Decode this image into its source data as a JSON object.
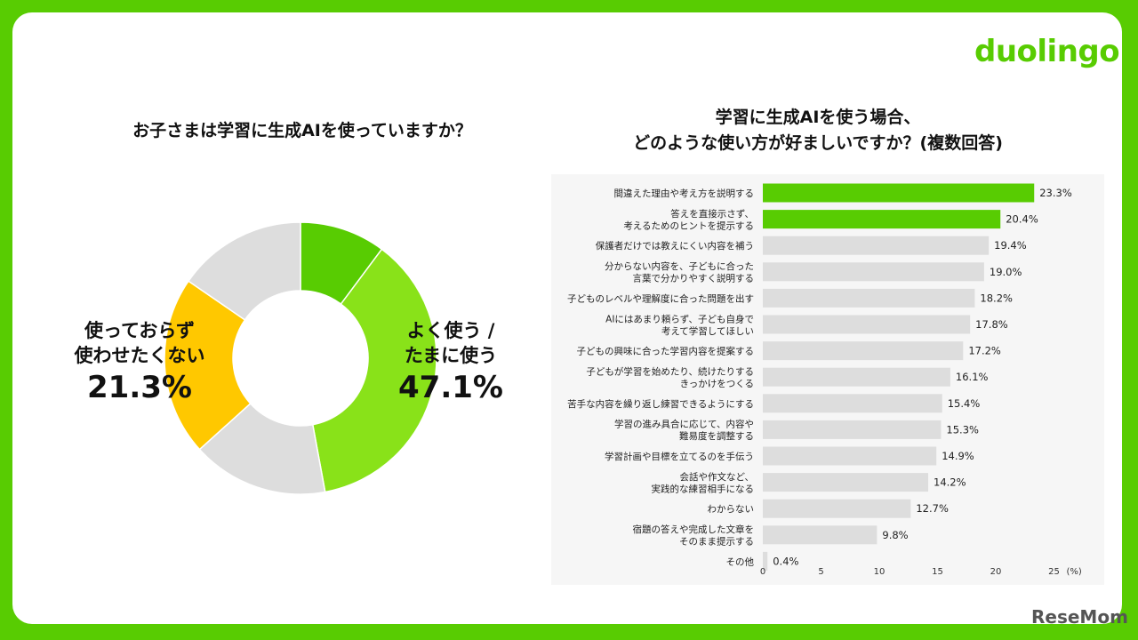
{
  "brand": {
    "logo": "duolingo",
    "watermark": "ReseMom"
  },
  "colors": {
    "background": "#58cc02",
    "green_dark": "#58cc02",
    "green_light": "#89e219",
    "yellow": "#ffc800",
    "gray": "#dddddd"
  },
  "left_chart": {
    "title": "お子さまは学習に生成AIを使っていますか？",
    "label_use_line1": "よく使う /",
    "label_use_line2": "たまに使う",
    "label_use_value": "47.1%",
    "label_other_line1": "使っておらず",
    "label_other_line2": "使わせたくない",
    "label_other_value": "21.3%"
  },
  "right_chart": {
    "title_line1": "学習に生成AIを使う場合、",
    "title_line2": "どのような使い方が好ましいですか？(複数回答)",
    "unit": "(%)"
  },
  "chart_data": [
    {
      "type": "pie",
      "title": "お子さまは学習に生成AIを使っていますか？",
      "slices": [
        {
          "color": "#58cc02",
          "value": 10.2
        },
        {
          "color": "#89e219",
          "value": 36.9
        },
        {
          "color": "#dddddd",
          "value": 16.2
        },
        {
          "color": "#ffc800",
          "value": 21.3
        },
        {
          "color": "#dddddd",
          "value": 15.4
        }
      ],
      "labeled_groups": [
        {
          "label": "よく使う / たまに使う",
          "value": 47.1
        },
        {
          "label": "使っておらず 使わせたくない",
          "value": 21.3
        }
      ]
    },
    {
      "type": "bar",
      "orientation": "horizontal",
      "title": "学習に生成AIを使う場合、どのような使い方が好ましいですか？(複数回答)",
      "xlim": [
        0,
        25
      ],
      "xticks": [
        0,
        5,
        10,
        15,
        20,
        25
      ],
      "unit": "(%)",
      "categories": [
        [
          "間違えた理由や考え方を説明する"
        ],
        [
          "答えを直接示さず、",
          "考えるためのヒントを提示する"
        ],
        [
          "保護者だけでは教えにくい内容を補う"
        ],
        [
          "分からない内容を、子どもに合った",
          "言葉で分かりやすく説明する"
        ],
        [
          "子どものレベルや理解度に合った問題を出す"
        ],
        [
          "AIにはあまり頼らず、子ども自身で",
          "考えて学習してほしい"
        ],
        [
          "子どもの興味に合った学習内容を提案する"
        ],
        [
          "子どもが学習を始めたり、続けたりする",
          "きっかけをつくる"
        ],
        [
          "苦手な内容を繰り返し練習できるようにする"
        ],
        [
          "学習の進み具合に応じて、内容や",
          "難易度を調整する"
        ],
        [
          "学習計画や目標を立てるのを手伝う"
        ],
        [
          "会話や作文など、",
          "実践的な練習相手になる"
        ],
        [
          "わからない"
        ],
        [
          "宿題の答えや完成した文章を",
          "そのまま提示する"
        ],
        [
          "その他"
        ]
      ],
      "values": [
        23.3,
        20.4,
        19.4,
        19.0,
        18.2,
        17.8,
        17.2,
        16.1,
        15.4,
        15.3,
        14.9,
        14.2,
        12.7,
        9.8,
        0.4
      ],
      "value_labels": [
        "23.3%",
        "20.4%",
        "19.4%",
        "19.0%",
        "18.2%",
        "17.8%",
        "17.2%",
        "16.1%",
        "15.4%",
        "15.3%",
        "14.9%",
        "14.2%",
        "12.7%",
        "9.8%",
        "0.4%"
      ],
      "bar_colors": [
        "#58cc02",
        "#58cc02",
        "#dddddd",
        "#dddddd",
        "#dddddd",
        "#dddddd",
        "#dddddd",
        "#dddddd",
        "#dddddd",
        "#dddddd",
        "#dddddd",
        "#dddddd",
        "#dddddd",
        "#dddddd",
        "#dddddd"
      ]
    }
  ]
}
